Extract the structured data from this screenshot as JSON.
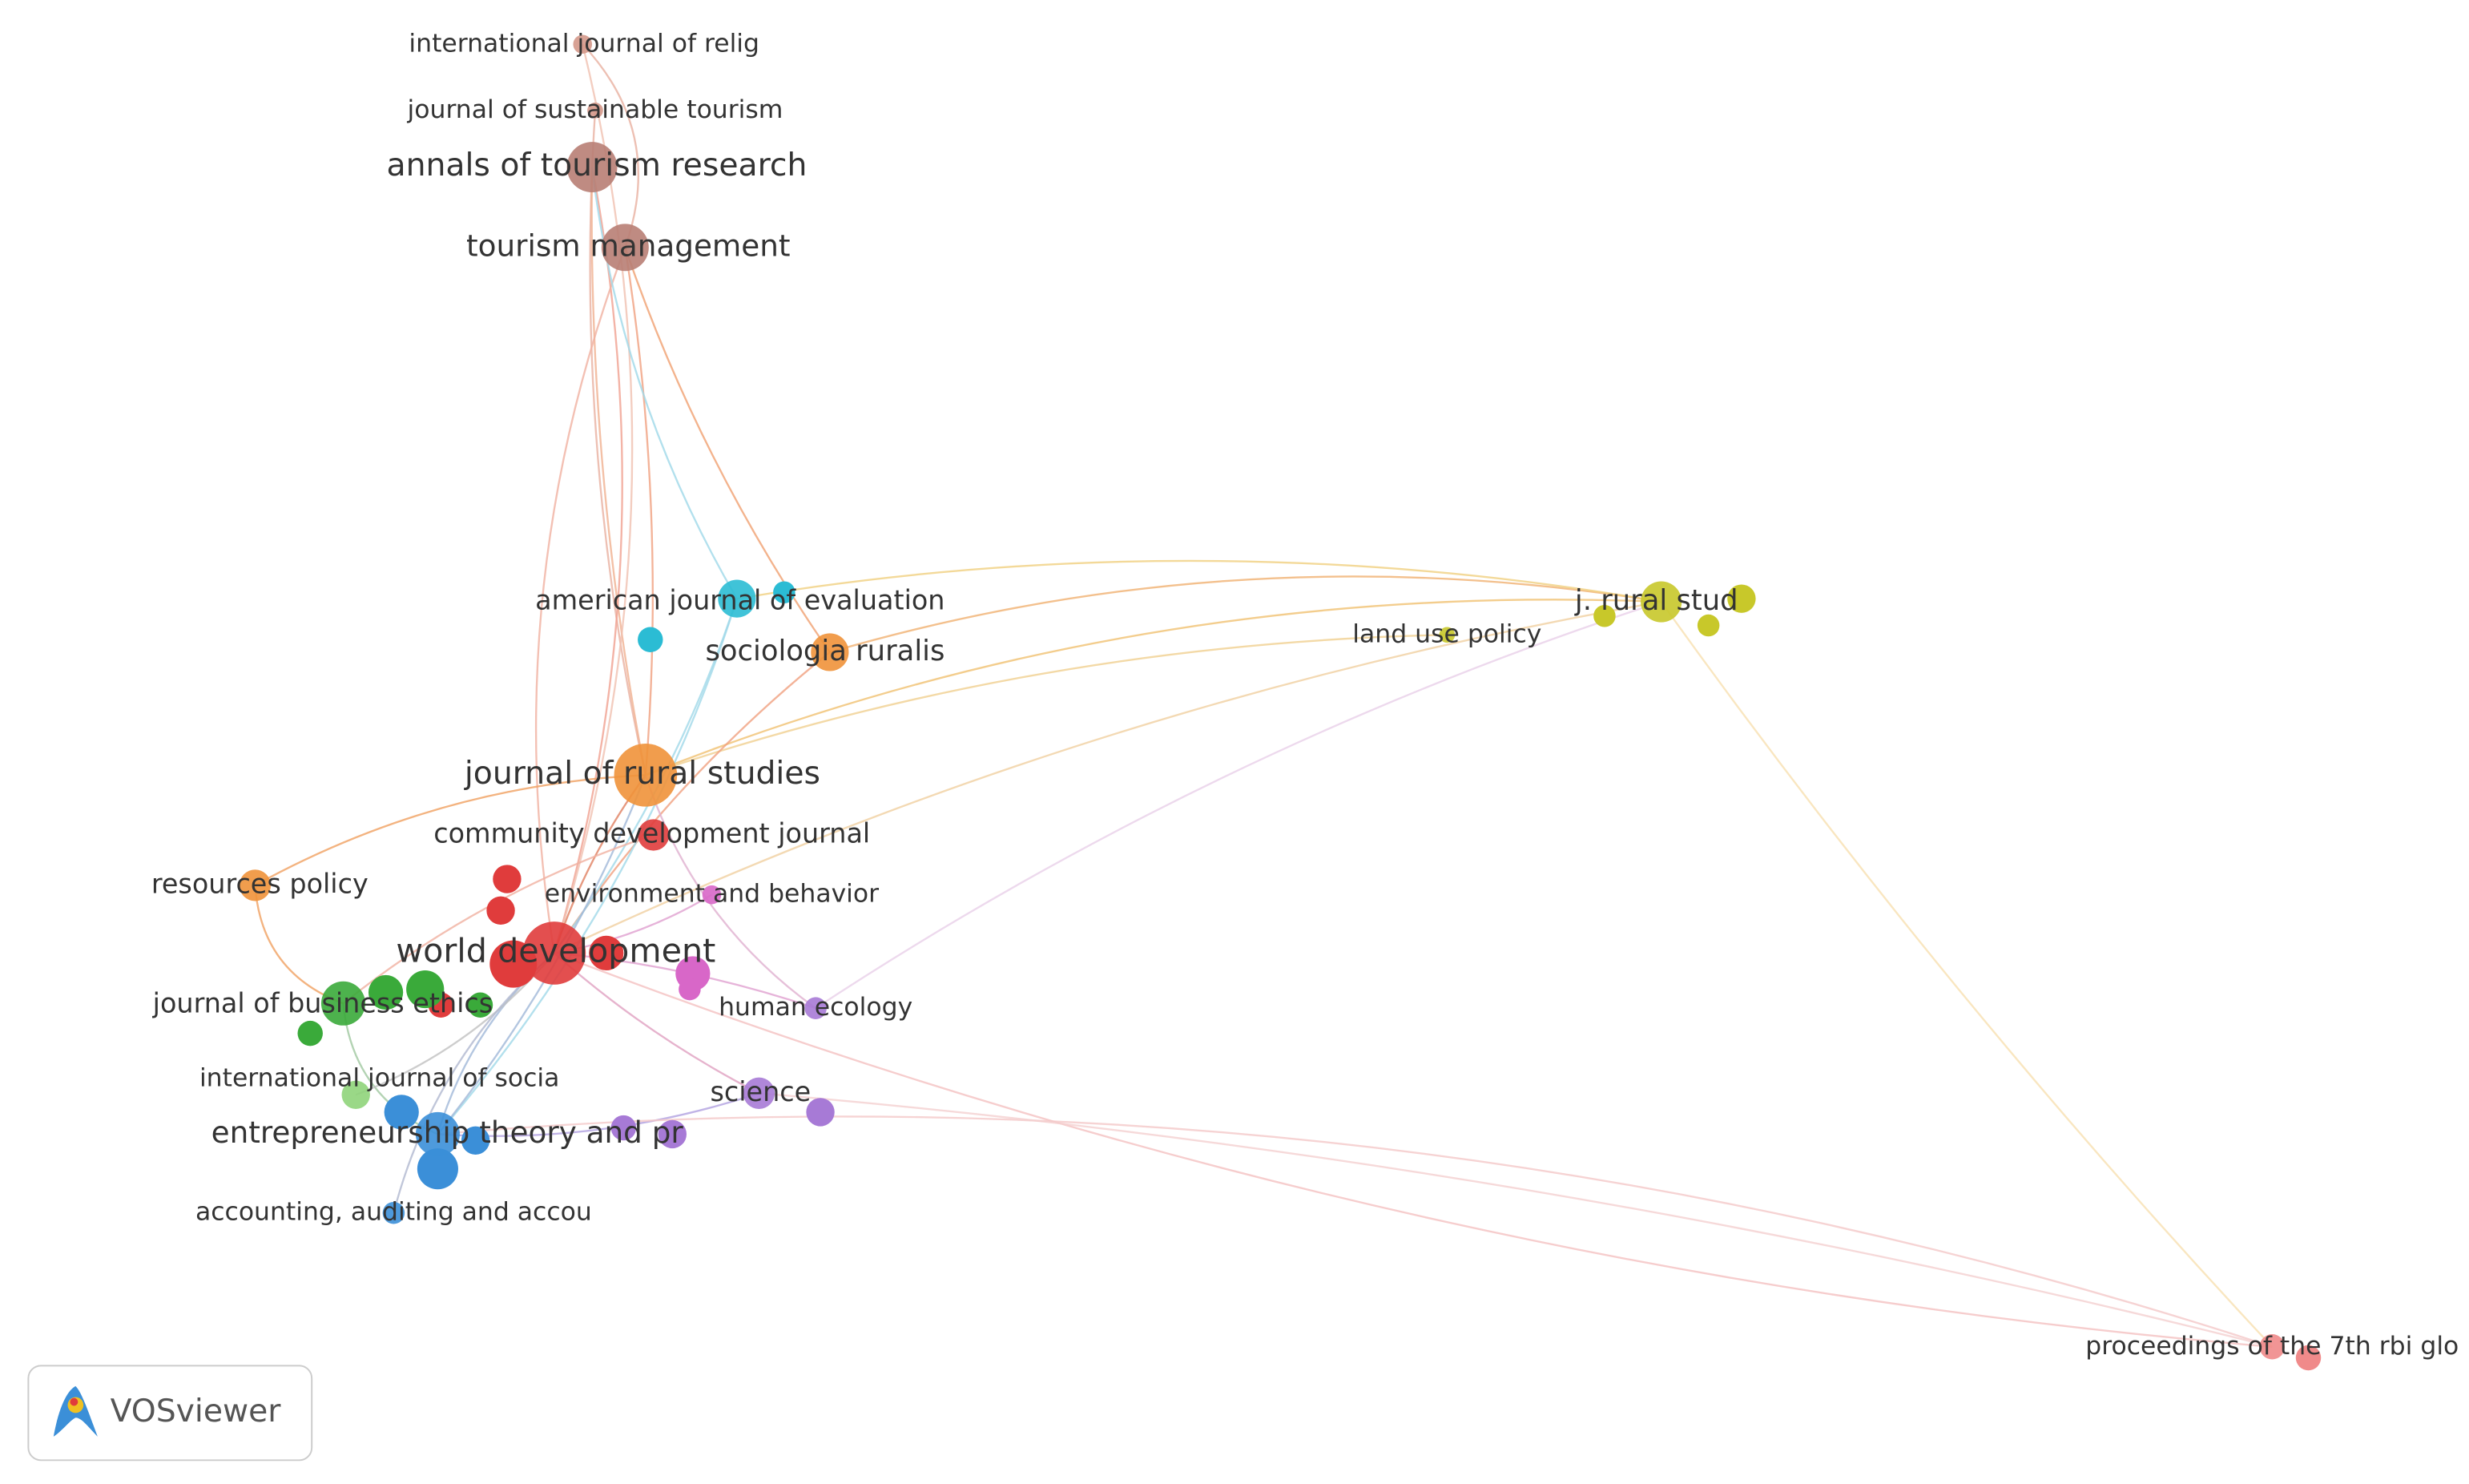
{
  "nodes": [
    {
      "label": "international journal of relig"
    },
    {
      "label": "journal of sustainable tourism"
    },
    {
      "label": "annals of tourism research"
    },
    {
      "label": "tourism management"
    },
    {
      "label": "american journal of evaluation"
    },
    {
      "label": "sociologia ruralis"
    },
    {
      "label": "j. rural stud"
    },
    {
      "label": "land use policy"
    },
    {
      "label": "journal of rural studies"
    },
    {
      "label": "community development journal"
    },
    {
      "label": "resources policy"
    },
    {
      "label": "environment and behavior"
    },
    {
      "label": "world development"
    },
    {
      "label": "journal of business ethics"
    },
    {
      "label": "human ecology"
    },
    {
      "label": "international journal of socia"
    },
    {
      "label": "science"
    },
    {
      "label": "entrepreneurship theory and pr"
    },
    {
      "label": "accounting, auditing and accou"
    },
    {
      "label": "proceedings of the 7th rbi glo"
    }
  ],
  "logo": {
    "text": "VOSviewer"
  }
}
